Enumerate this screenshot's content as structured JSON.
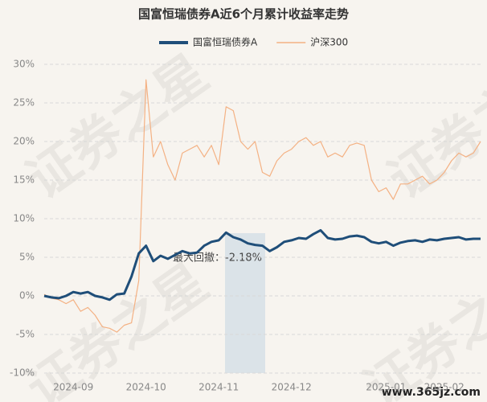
{
  "chart_data": {
    "type": "line",
    "title": "国富恒瑞债券A近6个月累计收益率走势",
    "annotation": "最大回撤：-2.18%",
    "watermark": "证券之星",
    "site": "www.365jz.com",
    "categories": [
      null,
      null,
      null,
      null,
      "2024-09",
      null,
      null,
      null,
      null,
      null,
      null,
      null,
      null,
      null,
      "2024-10",
      null,
      null,
      null,
      null,
      null,
      null,
      null,
      null,
      null,
      "2024-11",
      null,
      null,
      null,
      null,
      null,
      null,
      null,
      null,
      null,
      "2024-12",
      null,
      null,
      null,
      null,
      null,
      null,
      null,
      null,
      null,
      null,
      null,
      null,
      "2025-01",
      null,
      null,
      null,
      null,
      null,
      null,
      null,
      "2025-02",
      null,
      null,
      null,
      null,
      null
    ],
    "series": [
      {
        "name": "国富恒瑞债券A",
        "color": "#1f4e79",
        "values": [
          0,
          -0.2,
          -0.3,
          0,
          0.5,
          0.3,
          0.5,
          0,
          -0.2,
          -0.5,
          0.2,
          0.3,
          2.5,
          5.5,
          6.5,
          4.5,
          5.2,
          4.8,
          5.3,
          5.8,
          5.5,
          5.6,
          6.5,
          7.0,
          7.2,
          8.2,
          7.6,
          7.3,
          6.8,
          6.6,
          6.5,
          5.8,
          6.3,
          7.0,
          7.2,
          7.5,
          7.4,
          8.0,
          8.5,
          7.5,
          7.3,
          7.4,
          7.7,
          7.8,
          7.6,
          7.0,
          6.8,
          7.0,
          6.5,
          6.9,
          7.1,
          7.2,
          7.0,
          7.3,
          7.2,
          7.4,
          7.5,
          7.6,
          7.3,
          7.4,
          7.4
        ]
      },
      {
        "name": "沪深300",
        "color": "#f4b183",
        "values": [
          0.2,
          -0.3,
          -0.5,
          -1,
          -0.5,
          -2,
          -1.5,
          -2.5,
          -4,
          -4.2,
          -4.7,
          -3.8,
          -3.5,
          2,
          28,
          18,
          20,
          17,
          15,
          18.5,
          19,
          19.5,
          18,
          19.5,
          17,
          24.5,
          24,
          20,
          19,
          20,
          16,
          15.5,
          17.5,
          18.5,
          19,
          20,
          20.5,
          19.5,
          20,
          18,
          18.5,
          18,
          19.5,
          19.8,
          19.5,
          15,
          13.5,
          14,
          12.5,
          14.5,
          14.5,
          15,
          15.5,
          14.5,
          15,
          16,
          17.5,
          18.5,
          18,
          18.5,
          20
        ]
      }
    ],
    "ylim": [
      -10,
      30
    ],
    "yticks": [
      {
        "value": -10,
        "label": "-10%"
      },
      {
        "value": -5,
        "label": "-5%"
      },
      {
        "value": 0,
        "label": "0%"
      },
      {
        "value": 5,
        "label": "5%"
      },
      {
        "value": 10,
        "label": "10%"
      },
      {
        "value": 15,
        "label": "15%"
      },
      {
        "value": 20,
        "label": "20%"
      },
      {
        "value": 25,
        "label": "25%"
      },
      {
        "value": 30,
        "label": "30%"
      }
    ],
    "grid": true
  }
}
